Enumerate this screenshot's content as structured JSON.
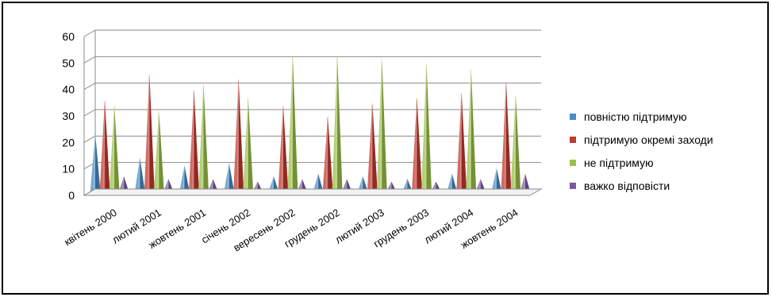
{
  "chart_data": {
    "type": "bar",
    "style": "3d-cone",
    "categories": [
      "квітень 2000",
      "лютий 2001",
      "жовтень 2001",
      "січень 2002",
      "вересень 2002",
      "грудень 2002",
      "лютий 2003",
      "грудень 2003",
      "лютий 2004",
      "жовтень 2004"
    ],
    "series": [
      {
        "name": "повністю підтримую",
        "color": "#4a8cc4",
        "values": [
          22,
          13,
          10,
          11,
          6,
          7,
          6,
          5,
          7,
          9
        ]
      },
      {
        "name": "підтримую окремі заходи",
        "color": "#c0392f",
        "values": [
          35,
          45,
          39,
          43,
          33,
          29,
          34,
          36,
          38,
          42
        ]
      },
      {
        "name": "не підтримую",
        "color": "#9bc04a",
        "values": [
          33,
          31,
          41,
          36,
          52,
          52,
          51,
          49,
          47,
          37
        ]
      },
      {
        "name": "важко відповісти",
        "color": "#7a5a9e",
        "values": [
          6,
          5,
          5,
          4,
          5,
          5,
          4,
          4,
          5,
          7
        ]
      }
    ],
    "yticks": [
      "0",
      "10",
      "20",
      "30",
      "40",
      "50",
      "60"
    ],
    "ylim": [
      0,
      60
    ],
    "grid": true,
    "legend_position": "right",
    "title": "",
    "xlabel": "",
    "ylabel": ""
  }
}
